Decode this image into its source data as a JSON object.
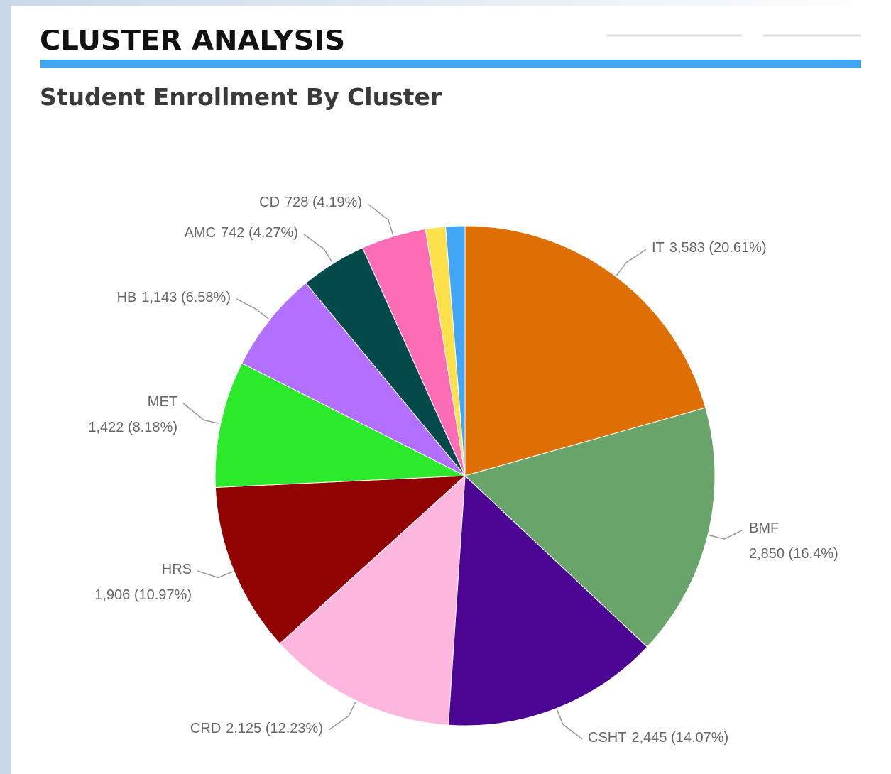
{
  "header": {
    "title": "CLUSTER ANALYSIS"
  },
  "chart_data": {
    "type": "pie",
    "title": "Student Enrollment By Cluster",
    "categories": [
      "IT",
      "BMF",
      "CSHT",
      "CRD",
      "HRS",
      "MET",
      "HB",
      "AMC",
      "CD",
      null,
      null
    ],
    "values": [
      3583,
      2850,
      2445,
      2125,
      1906,
      1422,
      1143,
      742,
      728,
      225,
      216
    ],
    "value_labels": [
      "3,583 (20.61%)",
      "2,850 (16.4%)",
      "2,445 (14.07%)",
      "2,125 (12.23%)",
      "1,906 (10.97%)",
      "1,422 (8.18%)",
      "1,143 (6.58%)",
      "742 (4.27%)",
      "728 (4.19%)",
      null,
      null
    ],
    "colors": [
      "#dd6f04",
      "#69a56b",
      "#4b0592",
      "#fdb7de",
      "#910202",
      "#2ce92c",
      "#b36ffd",
      "#054a4b",
      "#fd6db6",
      "#fde14b",
      "#42a6f6"
    ]
  }
}
